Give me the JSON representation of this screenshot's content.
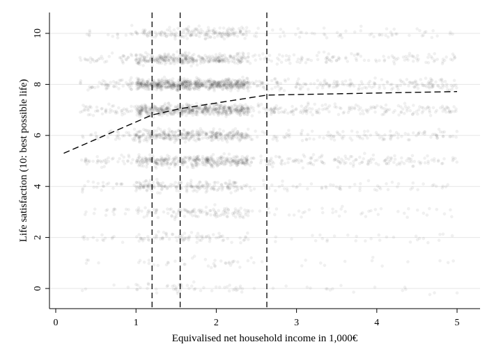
{
  "chart_data": {
    "type": "scatter",
    "xlabel": "Equivalised net household income in 1,000€",
    "ylabel": "Life satisfaction (10: best possible life)",
    "xlim": [
      -0.1,
      5.3
    ],
    "ylim": [
      -0.8,
      10.8
    ],
    "x_ticks": [
      0,
      1,
      2,
      3,
      4,
      5
    ],
    "y_ticks": [
      0,
      2,
      4,
      6,
      8,
      10
    ],
    "grid": "horizontal",
    "legend": "none",
    "scatter_density": [
      {
        "y": 0,
        "weight": 0.08
      },
      {
        "y": 1,
        "weight": 0.06
      },
      {
        "y": 2,
        "weight": 0.14
      },
      {
        "y": 3,
        "weight": 0.2
      },
      {
        "y": 4,
        "weight": 0.3
      },
      {
        "y": 5,
        "weight": 0.62
      },
      {
        "y": 6,
        "weight": 0.55
      },
      {
        "y": 7,
        "weight": 0.85
      },
      {
        "y": 8,
        "weight": 1.0
      },
      {
        "y": 9,
        "weight": 0.55
      },
      {
        "y": 10,
        "weight": 0.28
      }
    ],
    "scatter_x_range": [
      0.3,
      5.0
    ],
    "scatter_x_peak": [
      1.0,
      2.4
    ],
    "vertical_lines": [
      1.2,
      1.55,
      2.63
    ],
    "fit_line": {
      "x": [
        0.1,
        1.2,
        1.55,
        2.63,
        5.0
      ],
      "y": [
        5.3,
        6.8,
        7.05,
        7.58,
        7.72
      ]
    },
    "colors": {
      "points": "#000000",
      "fit_line": "#000000",
      "grid": "#e6e6e6"
    }
  }
}
